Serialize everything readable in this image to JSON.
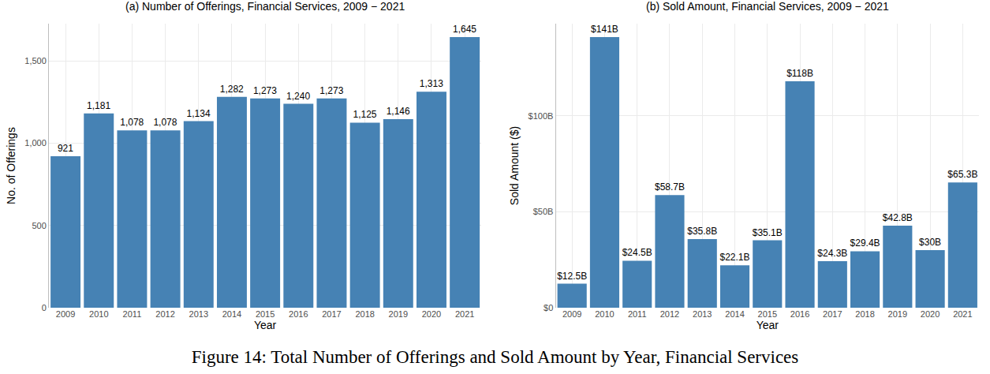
{
  "chart_data": [
    {
      "type": "bar",
      "title": "(a) Number of Offerings, Financial Services, 2009 − 2021",
      "x_label": "Year",
      "y_label": "No. of Offerings",
      "categories": [
        "2009",
        "2010",
        "2011",
        "2012",
        "2013",
        "2014",
        "2015",
        "2016",
        "2017",
        "2018",
        "2019",
        "2020",
        "2021"
      ],
      "values": [
        921,
        1181,
        1078,
        1078,
        1134,
        1282,
        1273,
        1240,
        1273,
        1125,
        1146,
        1313,
        1645
      ],
      "value_labels": [
        "921",
        "1,181",
        "1,078",
        "1,078",
        "1,134",
        "1,282",
        "1,273",
        "1,240",
        "1,273",
        "1,125",
        "1,146",
        "1,313",
        "1,645"
      ],
      "color": "#4682b4",
      "ylim": [
        0,
        1727
      ],
      "yticks": [
        0,
        500,
        {
          "value": 1000,
          "label": "1,000"
        },
        {
          "value": 1500,
          "label": "1,500"
        }
      ],
      "grid": true,
      "data_labels": true
    },
    {
      "type": "bar",
      "title": "(b) Sold Amount, Financial Services, 2009 − 2021",
      "x_label": "Year",
      "y_label": "Sold Amount ($)",
      "categories": [
        "2009",
        "2010",
        "2011",
        "2012",
        "2013",
        "2014",
        "2015",
        "2016",
        "2017",
        "2018",
        "2019",
        "2020",
        "2021"
      ],
      "values": [
        12.5,
        141,
        24.5,
        58.7,
        35.8,
        22.1,
        35.1,
        118,
        24.3,
        29.4,
        42.8,
        30,
        65.3
      ],
      "value_labels": [
        "$12.5B",
        "$141B",
        "$24.5B",
        "$58.7B",
        "$35.8B",
        "$22.1B",
        "$35.1B",
        "$118B",
        "$24.3B",
        "$29.4B",
        "$42.8B",
        "$30B",
        "$65.3B"
      ],
      "color": "#4682b4",
      "ylim": [
        0,
        148
      ],
      "yticks": [
        {
          "value": 0,
          "label": "$0"
        },
        {
          "value": 50,
          "label": "$50B"
        },
        {
          "value": 100,
          "label": "$100B"
        }
      ],
      "grid": true,
      "data_labels": true
    }
  ],
  "caption": "Figure 14: Total Number of Offerings and Sold Amount by Year, Financial Services"
}
